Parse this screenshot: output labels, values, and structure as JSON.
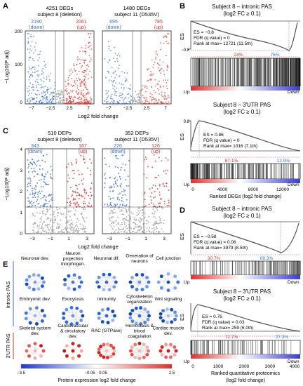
{
  "panels": {
    "A": {
      "letter": "A",
      "ylabel": "−Log10(P adj)",
      "xlabel": "Log2 fold change",
      "left": {
        "title1": "4251 DEGs",
        "title2": "subject 8 (deletion)",
        "down": "2190",
        "down_lbl": "(down)",
        "up": "2061",
        "up_lbl": "(up)",
        "xticks": [
          "−7",
          "−2.5",
          "2.5",
          "7"
        ]
      },
      "right": {
        "title1": "1480 DEGs",
        "title2": "subject 11 (D535V)",
        "down": "695",
        "down_lbl": "(down)",
        "up": "785",
        "up_lbl": "(up)",
        "xticks": [
          "−7",
          "−2.5",
          "2.5",
          "7"
        ]
      },
      "yticks": [
        "0",
        "100",
        "200"
      ]
    },
    "B": {
      "letter": "B",
      "top": {
        "title": "Subject 8 – intronic PAS",
        "subtitle": "(log2 FC ≥ 0.1)",
        "es": "ES = −0.8",
        "fdr": "FDR (q value) = 0",
        "rank": "Rank at max= 12721 (11.5th)",
        "ytick": "−0.8",
        "pct_red": "24%",
        "pct_blue": "76%"
      },
      "bottom": {
        "title": "Subject 8 – 3′UTR PAS",
        "subtitle": "(log2 FC ≥ 0.1)",
        "es": "ES = 0.86",
        "fdr": "FDR (q value) = 0",
        "rank": "Rank at max= 1016 (7.1th)",
        "ytick": "0.8",
        "pct_red": "87.1%",
        "pct_blue": "12.9%"
      },
      "ylabel": "ES",
      "up": "Up",
      "down": "Down",
      "xticks": [
        "0",
        "4000",
        "8000",
        "12000"
      ],
      "xlabel1": "Ranked DEGs (log2 fold change)"
    },
    "C": {
      "letter": "C",
      "ylabel": "−Log10(P adj)",
      "xlabel": "Log2 fold change",
      "left": {
        "title1": "510 DEPs",
        "title2": "subject 8 (deletion)",
        "down": "343",
        "down_lbl": "(down)",
        "up": "167",
        "up_lbl": "(up)",
        "xticks": [
          "−3",
          "−1",
          "1",
          "3"
        ]
      },
      "right": {
        "title1": "352 DEPs",
        "title2": "subject 11 (D535V)",
        "down": "226",
        "down_lbl": "(down)",
        "up": "126",
        "up_lbl": "(up)",
        "xticks": [
          "−3",
          "−1",
          "1",
          "3"
        ]
      },
      "yticks": [
        "0",
        "1",
        "2",
        "3",
        "4"
      ]
    },
    "D": {
      "letter": "D",
      "top": {
        "title": "Subject 8 – intronic PAS",
        "subtitle": "(log2 FC ≥ 0.1)",
        "es": "ES = −0.58",
        "fdr": "FDR (q value) = 0.06",
        "rank": "Rank at max= 3979 (8.5th)",
        "pct_red": "30.7%",
        "pct_blue": "69.3%"
      },
      "bottom": {
        "title": "Subject 8 – 3′UTR PAS",
        "subtitle": "(log2 FC ≥ 0.1)",
        "es": "ES = 0.76",
        "fdr": "FDR (q value) = 0.03",
        "rank": "Rank at max= 259 (6.0th)",
        "pct_red": "72.7%",
        "pct_blue": "27.3%"
      },
      "ylabel": "ES",
      "up": "Up",
      "down": "Down",
      "xticks": [
        "0",
        "1000",
        "2000",
        "3000",
        "4000"
      ],
      "xlabel1": "Ranked quantitative proteomics",
      "xlabel2": "(log2 fold change)"
    },
    "E": {
      "letter": "E",
      "intronic_label": "Intronic PAS",
      "utr_label": "3′UTR PAS",
      "row1": [
        "Neuronal dev.",
        "Neuron projection morphogen.",
        "Neuronal dif.",
        "Generation of neurons",
        "Cell junction"
      ],
      "row2": [
        "Embryonic dev.",
        "Exocytosis",
        "Immunity",
        "Cytoskeleton organization",
        "Wnt signaling"
      ],
      "row3": [
        "Skeletal system dev.",
        "Cardiovascular & circulatory dev.",
        "RAC (GTPase)",
        "Hemostasis & blood coagulation",
        "Cardiac muscle dev."
      ],
      "colorbar": {
        "min": "−3.5",
        "mid1": "−0.05",
        "mid2": "0.05",
        "max": "2.5",
        "label": "Protein expression log2 fold change"
      }
    }
  },
  "colors": {
    "up": "#e0302a",
    "down": "#3b6fd6",
    "ns": "#a9a9a9"
  }
}
